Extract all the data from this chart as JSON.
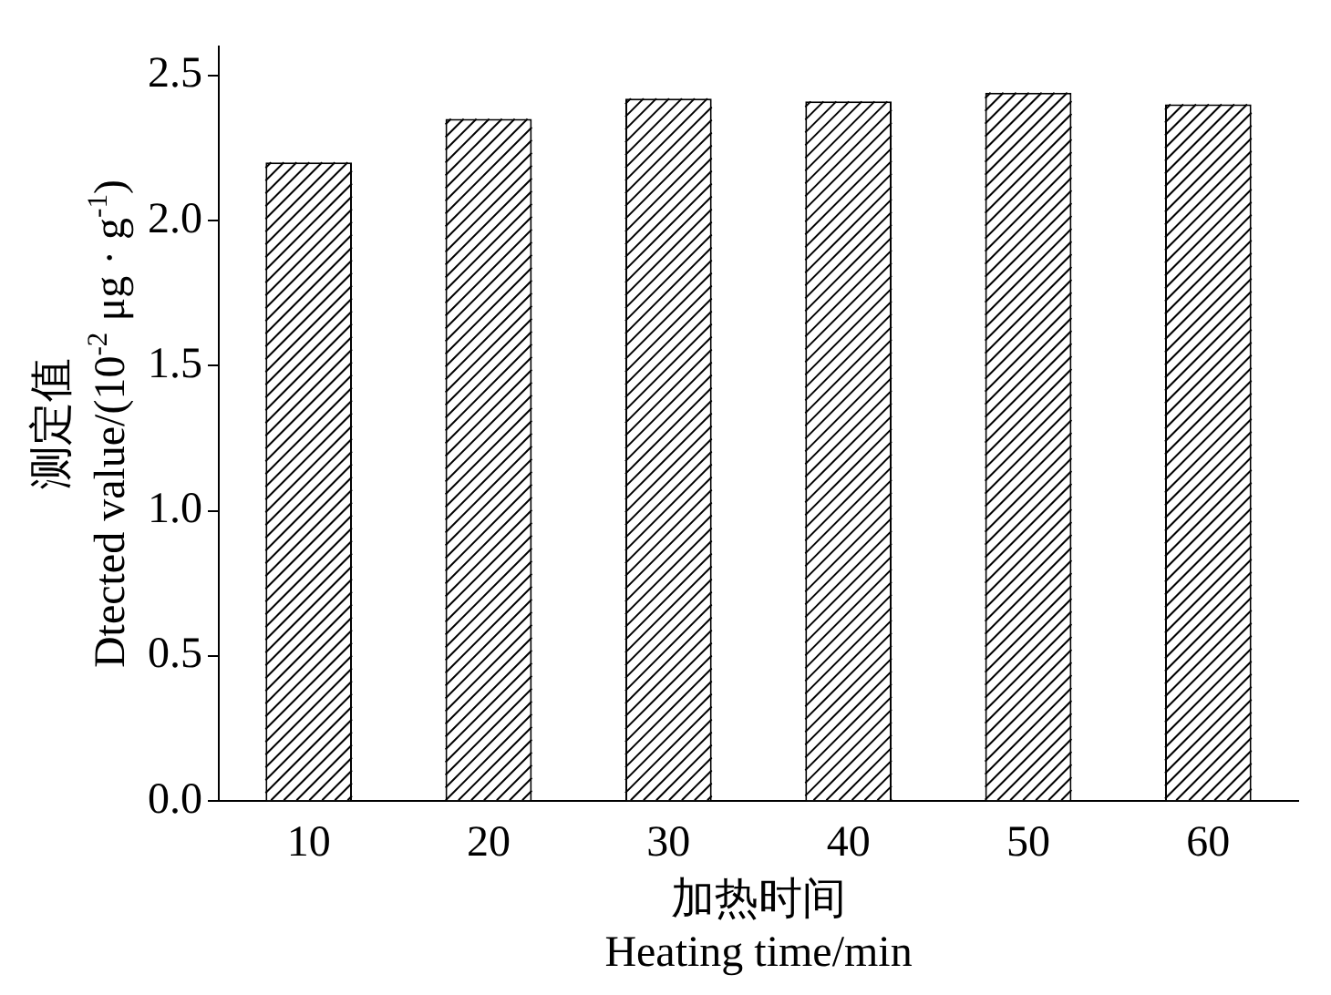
{
  "chart_data": {
    "type": "bar",
    "xlabel": "加热时间\nHeating time/min",
    "ylabel": "测定值\nDtected value/(10$^{-2}$ μg · g$^{-1}$)",
    "categories": [
      "10",
      "20",
      "30",
      "40",
      "50",
      "60"
    ],
    "values": [
      2.2,
      2.35,
      2.42,
      2.41,
      2.44,
      2.4
    ],
    "color": "#000000",
    "ylim": [
      0,
      2.6
    ],
    "yticks": [
      {
        "value": 0,
        "label": "0.0"
      },
      0.5,
      {
        "value": 1,
        "label": "1.0"
      },
      1.5,
      {
        "value": 2,
        "label": "2.0"
      },
      2.5
    ],
    "grid": false,
    "legend": false
  }
}
